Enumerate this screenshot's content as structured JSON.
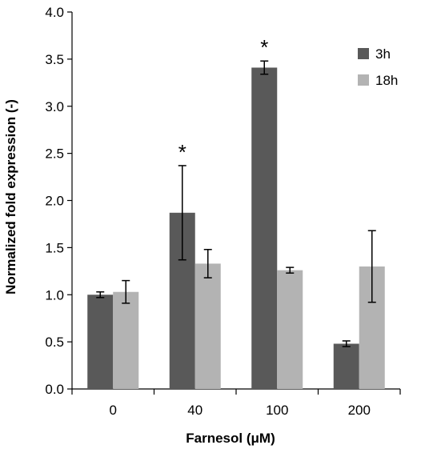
{
  "chart_data": {
    "type": "bar",
    "xlabel": "Farnesol (μM)",
    "ylabel": "Normalized fold expression (-)",
    "categories": [
      "0",
      "40",
      "100",
      "200"
    ],
    "ylim": [
      0,
      4.0
    ],
    "yticks": [
      "0.0",
      "0.5",
      "1.0",
      "1.5",
      "2.0",
      "2.5",
      "3.0",
      "3.5",
      "4.0"
    ],
    "series": [
      {
        "name": "3h",
        "color": "#595959",
        "values": [
          1.0,
          1.87,
          3.41,
          0.48
        ],
        "errors": [
          0.03,
          0.5,
          0.07,
          0.03
        ]
      },
      {
        "name": "18h",
        "color": "#b3b3b3",
        "values": [
          1.03,
          1.33,
          1.26,
          1.3
        ],
        "errors": [
          0.12,
          0.15,
          0.03,
          0.38
        ]
      }
    ],
    "annotations": [
      {
        "text": "*",
        "category": "40",
        "series": "3h"
      },
      {
        "text": "*",
        "category": "100",
        "series": "3h"
      }
    ],
    "legend_position": "top-right",
    "grid": false
  }
}
